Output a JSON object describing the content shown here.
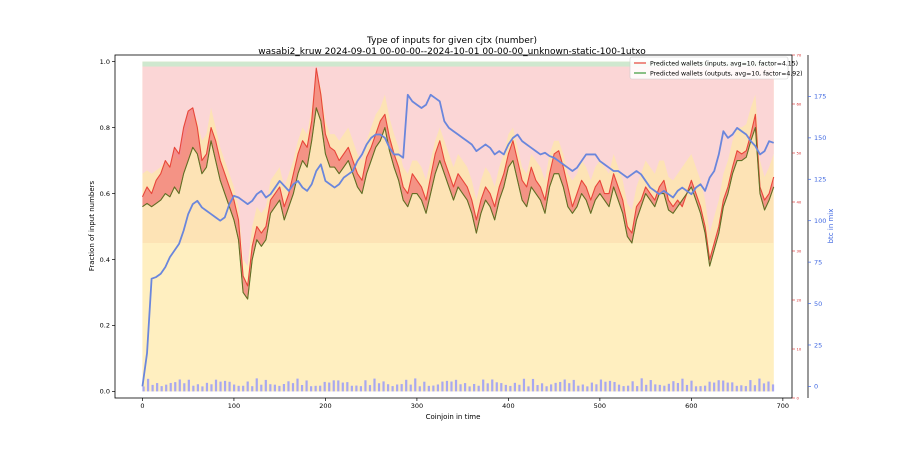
{
  "chart_data": {
    "type": "line",
    "title": "Type of inputs for given cjtx (number)",
    "subtitle": "wasabi2_kruw 2024-09-01 00-00-00--2024-10-01 00-00-00_unknown-static-100-1utxo",
    "xlabel": "Coinjoin in time",
    "ylabel": "Fraction of input numbers",
    "y2label": "btc in mix",
    "xlim": [
      -30,
      710
    ],
    "ylim": [
      -0.02,
      1.02
    ],
    "y2lim": [
      -7,
      200
    ],
    "y3lim": [
      0,
      70
    ],
    "x_ticks": [
      0,
      100,
      200,
      300,
      400,
      500,
      600,
      700
    ],
    "y_ticks": [
      0.0,
      0.2,
      0.4,
      0.6,
      0.8,
      1.0
    ],
    "y2_ticks": [
      0,
      25,
      50,
      75,
      100,
      125,
      150,
      175
    ],
    "y3_ticks": [
      0,
      10,
      20,
      30,
      40,
      50,
      60,
      70
    ],
    "grid": false,
    "legend_position": "top-right",
    "colors": {
      "inputs_line": "#e8463a",
      "outputs_line": "#3a9a3a",
      "overlap_line": "#7a5a1e",
      "btc_line": "#6a86dc",
      "fill_red": "#f07070",
      "fill_green": "#7fcf7f",
      "y2_axis": "#4169e1",
      "y3_axis": "#d62728",
      "band_orange": "#fde3b5",
      "band_yellow": "#fff3c4",
      "band_pink": "#fbd6d6",
      "band_green": "#cfe8cf",
      "band_blue": "#a8a8f0"
    },
    "series": [
      {
        "name": "Predicted wallets (inputs, avg=10, factor=4.15)",
        "axis": "left",
        "x": [
          0,
          5,
          10,
          15,
          20,
          25,
          30,
          35,
          40,
          45,
          50,
          55,
          60,
          65,
          70,
          75,
          80,
          85,
          90,
          95,
          100,
          105,
          110,
          115,
          120,
          125,
          130,
          135,
          140,
          145,
          150,
          155,
          160,
          165,
          170,
          175,
          180,
          185,
          190,
          195,
          200,
          205,
          210,
          215,
          220,
          225,
          230,
          235,
          240,
          245,
          250,
          255,
          260,
          265,
          270,
          275,
          280,
          285,
          290,
          295,
          300,
          305,
          310,
          315,
          320,
          325,
          330,
          335,
          340,
          345,
          350,
          355,
          360,
          365,
          370,
          375,
          380,
          385,
          390,
          395,
          400,
          405,
          410,
          415,
          420,
          425,
          430,
          435,
          440,
          445,
          450,
          455,
          460,
          465,
          470,
          475,
          480,
          485,
          490,
          495,
          500,
          505,
          510,
          515,
          520,
          525,
          530,
          535,
          540,
          545,
          550,
          555,
          560,
          565,
          570,
          575,
          580,
          585,
          590,
          595,
          600,
          605,
          610,
          615,
          620,
          625,
          630,
          635,
          640,
          645,
          650,
          655,
          660,
          665,
          670,
          675,
          680,
          685,
          690
        ],
        "values": [
          0.59,
          0.62,
          0.6,
          0.64,
          0.66,
          0.7,
          0.68,
          0.74,
          0.72,
          0.8,
          0.85,
          0.86,
          0.8,
          0.7,
          0.72,
          0.8,
          0.76,
          0.7,
          0.66,
          0.62,
          0.58,
          0.52,
          0.35,
          0.32,
          0.44,
          0.5,
          0.48,
          0.5,
          0.58,
          0.6,
          0.62,
          0.56,
          0.6,
          0.66,
          0.72,
          0.76,
          0.74,
          0.82,
          0.98,
          0.9,
          0.78,
          0.74,
          0.73,
          0.7,
          0.72,
          0.74,
          0.7,
          0.66,
          0.64,
          0.71,
          0.74,
          0.78,
          0.82,
          0.84,
          0.77,
          0.72,
          0.68,
          0.62,
          0.6,
          0.66,
          0.64,
          0.62,
          0.58,
          0.65,
          0.72,
          0.76,
          0.7,
          0.66,
          0.62,
          0.66,
          0.64,
          0.62,
          0.58,
          0.52,
          0.58,
          0.62,
          0.6,
          0.56,
          0.62,
          0.66,
          0.72,
          0.76,
          0.7,
          0.64,
          0.62,
          0.68,
          0.64,
          0.62,
          0.58,
          0.66,
          0.72,
          0.73,
          0.68,
          0.62,
          0.56,
          0.6,
          0.64,
          0.62,
          0.58,
          0.62,
          0.64,
          0.6,
          0.6,
          0.66,
          0.62,
          0.58,
          0.5,
          0.48,
          0.56,
          0.58,
          0.62,
          0.6,
          0.58,
          0.62,
          0.64,
          0.58,
          0.56,
          0.58,
          0.56,
          0.6,
          0.64,
          0.6,
          0.56,
          0.5,
          0.4,
          0.45,
          0.5,
          0.58,
          0.62,
          0.68,
          0.73,
          0.72,
          0.73,
          0.78,
          0.84,
          0.62,
          0.58,
          0.6,
          0.65
        ]
      },
      {
        "name": "Predicted wallets (outputs, avg=10, factor=4.92)",
        "axis": "left",
        "x": [
          0,
          5,
          10,
          15,
          20,
          25,
          30,
          35,
          40,
          45,
          50,
          55,
          60,
          65,
          70,
          75,
          80,
          85,
          90,
          95,
          100,
          105,
          110,
          115,
          120,
          125,
          130,
          135,
          140,
          145,
          150,
          155,
          160,
          165,
          170,
          175,
          180,
          185,
          190,
          195,
          200,
          205,
          210,
          215,
          220,
          225,
          230,
          235,
          240,
          245,
          250,
          255,
          260,
          265,
          270,
          275,
          280,
          285,
          290,
          295,
          300,
          305,
          310,
          315,
          320,
          325,
          330,
          335,
          340,
          345,
          350,
          355,
          360,
          365,
          370,
          375,
          380,
          385,
          390,
          395,
          400,
          405,
          410,
          415,
          420,
          425,
          430,
          435,
          440,
          445,
          450,
          455,
          460,
          465,
          470,
          475,
          480,
          485,
          490,
          495,
          500,
          505,
          510,
          515,
          520,
          525,
          530,
          535,
          540,
          545,
          550,
          555,
          560,
          565,
          570,
          575,
          580,
          585,
          590,
          595,
          600,
          605,
          610,
          615,
          620,
          625,
          630,
          635,
          640,
          645,
          650,
          655,
          660,
          665,
          670,
          675,
          680,
          685,
          690
        ],
        "values": [
          0.56,
          0.57,
          0.56,
          0.57,
          0.58,
          0.6,
          0.59,
          0.62,
          0.6,
          0.66,
          0.7,
          0.74,
          0.72,
          0.66,
          0.68,
          0.76,
          0.7,
          0.64,
          0.6,
          0.56,
          0.52,
          0.46,
          0.3,
          0.28,
          0.4,
          0.46,
          0.44,
          0.46,
          0.54,
          0.56,
          0.58,
          0.52,
          0.56,
          0.6,
          0.66,
          0.7,
          0.68,
          0.76,
          0.86,
          0.82,
          0.72,
          0.68,
          0.68,
          0.66,
          0.68,
          0.7,
          0.66,
          0.62,
          0.6,
          0.66,
          0.7,
          0.74,
          0.76,
          0.8,
          0.73,
          0.68,
          0.64,
          0.58,
          0.56,
          0.6,
          0.6,
          0.58,
          0.54,
          0.6,
          0.66,
          0.7,
          0.66,
          0.62,
          0.58,
          0.62,
          0.6,
          0.58,
          0.54,
          0.48,
          0.54,
          0.58,
          0.56,
          0.52,
          0.58,
          0.62,
          0.68,
          0.7,
          0.64,
          0.58,
          0.56,
          0.62,
          0.6,
          0.58,
          0.54,
          0.62,
          0.66,
          0.66,
          0.62,
          0.56,
          0.54,
          0.56,
          0.6,
          0.58,
          0.54,
          0.58,
          0.6,
          0.58,
          0.56,
          0.62,
          0.58,
          0.54,
          0.47,
          0.45,
          0.52,
          0.56,
          0.6,
          0.58,
          0.56,
          0.6,
          0.6,
          0.55,
          0.54,
          0.56,
          0.58,
          0.6,
          0.62,
          0.58,
          0.54,
          0.48,
          0.38,
          0.43,
          0.48,
          0.56,
          0.6,
          0.66,
          0.7,
          0.7,
          0.71,
          0.76,
          0.8,
          0.6,
          0.55,
          0.58,
          0.62
        ]
      },
      {
        "name": "",
        "axis": "right",
        "x": [
          0,
          5,
          10,
          15,
          20,
          25,
          30,
          35,
          40,
          45,
          50,
          55,
          60,
          65,
          70,
          75,
          80,
          85,
          90,
          95,
          100,
          105,
          110,
          115,
          120,
          125,
          130,
          135,
          140,
          145,
          150,
          155,
          160,
          165,
          170,
          175,
          180,
          185,
          190,
          195,
          200,
          205,
          210,
          215,
          220,
          225,
          230,
          235,
          240,
          245,
          250,
          255,
          260,
          265,
          270,
          275,
          280,
          285,
          290,
          295,
          300,
          305,
          310,
          315,
          320,
          325,
          330,
          335,
          340,
          345,
          350,
          355,
          360,
          365,
          370,
          375,
          380,
          385,
          390,
          395,
          400,
          405,
          410,
          415,
          420,
          425,
          430,
          435,
          440,
          445,
          450,
          455,
          460,
          465,
          470,
          475,
          480,
          485,
          490,
          495,
          500,
          505,
          510,
          515,
          520,
          525,
          530,
          535,
          540,
          545,
          550,
          555,
          560,
          565,
          570,
          575,
          580,
          585,
          590,
          595,
          600,
          605,
          610,
          615,
          620,
          625,
          630,
          635,
          640,
          645,
          650,
          655,
          660,
          665,
          670,
          675,
          680,
          685,
          690
        ],
        "values": [
          0,
          20,
          65,
          66,
          68,
          72,
          78,
          82,
          86,
          94,
          104,
          110,
          112,
          108,
          106,
          104,
          102,
          100,
          102,
          110,
          115,
          114,
          112,
          110,
          112,
          116,
          118,
          114,
          116,
          120,
          124,
          121,
          118,
          122,
          124,
          120,
          118,
          122,
          130,
          134,
          124,
          122,
          120,
          122,
          126,
          128,
          130,
          136,
          140,
          146,
          150,
          152,
          152,
          150,
          144,
          140,
          140,
          138,
          176,
          172,
          170,
          168,
          170,
          176,
          174,
          172,
          160,
          156,
          154,
          152,
          150,
          148,
          146,
          142,
          144,
          146,
          144,
          140,
          142,
          140,
          146,
          150,
          152,
          148,
          146,
          144,
          142,
          140,
          141,
          139,
          138,
          136,
          134,
          132,
          130,
          132,
          136,
          140,
          140,
          140,
          136,
          134,
          132,
          130,
          130,
          128,
          126,
          128,
          130,
          128,
          124,
          120,
          118,
          116,
          118,
          116,
          114,
          118,
          120,
          118,
          116,
          120,
          122,
          118,
          126,
          130,
          140,
          154,
          150,
          152,
          156,
          154,
          152,
          148,
          145,
          140,
          142,
          148,
          147
        ]
      }
    ]
  }
}
